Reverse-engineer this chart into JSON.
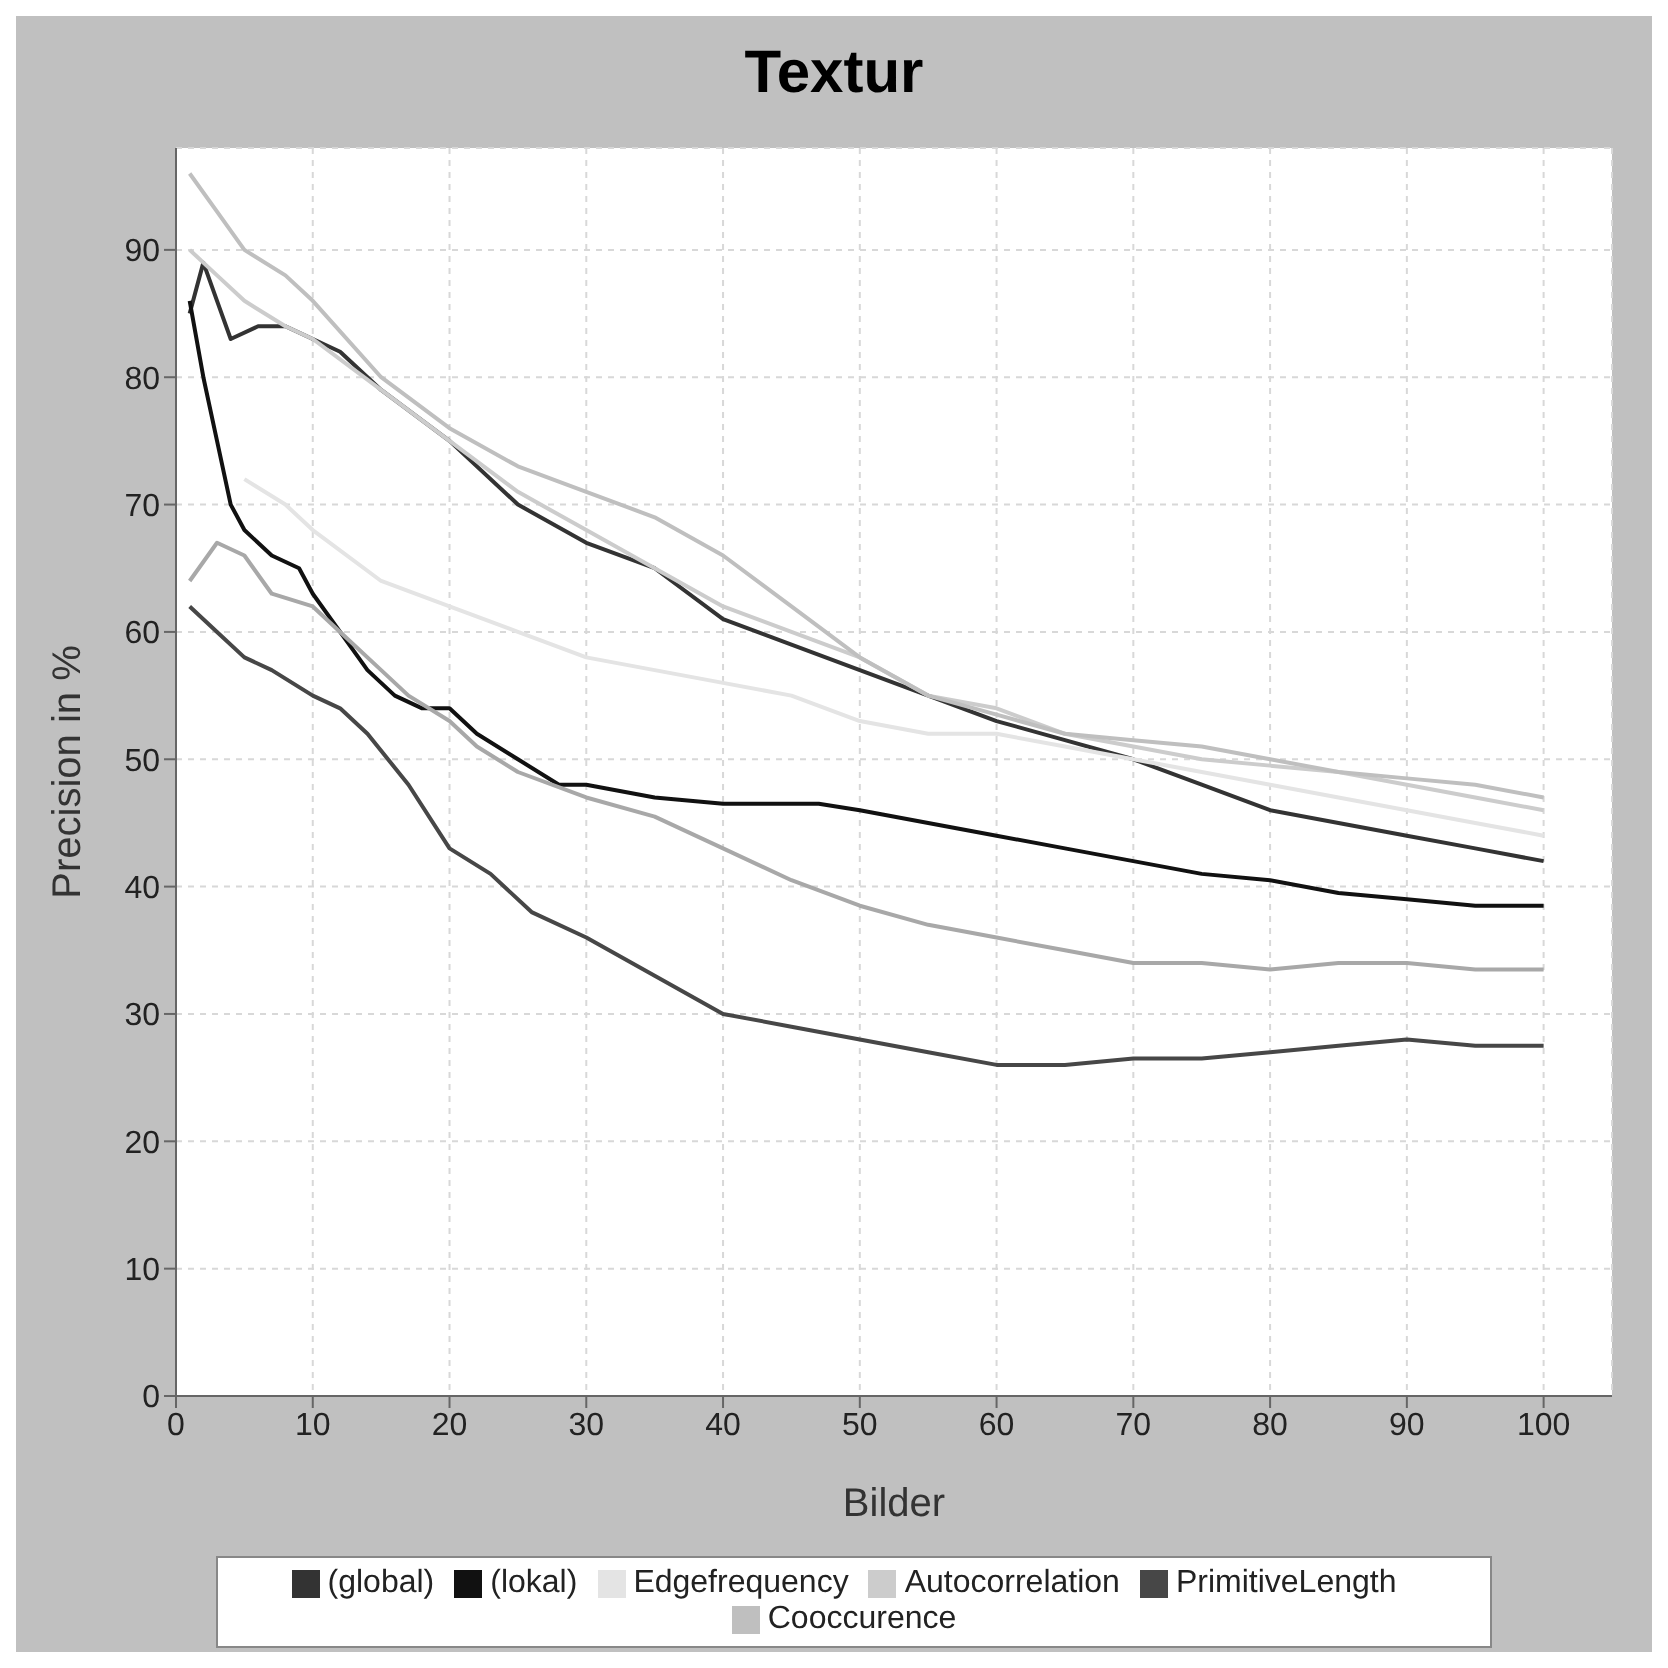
{
  "chart_data": {
    "type": "line",
    "title": "Textur",
    "xlabel": "Bilder",
    "ylabel": "Precision in %",
    "xlim": [
      0,
      105
    ],
    "ylim": [
      0,
      98
    ],
    "xticks": [
      0,
      10,
      20,
      30,
      40,
      50,
      60,
      70,
      80,
      90,
      100
    ],
    "yticks": [
      0,
      10,
      20,
      30,
      40,
      50,
      60,
      70,
      80,
      90
    ],
    "grid": true,
    "legend": "bottom",
    "marker": "none",
    "line_style": "solid",
    "series": [
      {
        "name": "(global)",
        "color": "#333333",
        "x": [
          1,
          2,
          3,
          4,
          6,
          8,
          10,
          12,
          15,
          20,
          25,
          30,
          35,
          40,
          45,
          50,
          55,
          60,
          65,
          70,
          75,
          80,
          85,
          90,
          95,
          100
        ],
        "values": [
          85,
          89,
          86,
          83,
          84,
          84,
          83,
          82,
          79,
          75,
          70,
          67,
          65,
          61,
          59,
          57,
          55,
          53,
          51.5,
          50,
          48,
          46,
          45,
          44,
          43,
          42
        ]
      },
      {
        "name": "(lokal)",
        "color": "#111111",
        "x": [
          1,
          2,
          3,
          4,
          5,
          7,
          9,
          10,
          12,
          14,
          16,
          18,
          20,
          22,
          25,
          28,
          30,
          35,
          40,
          47,
          50,
          55,
          60,
          65,
          70,
          75,
          80,
          85,
          90,
          95,
          100
        ],
        "values": [
          86,
          80,
          75,
          70,
          68,
          66,
          65,
          63,
          60,
          57,
          55,
          54,
          54,
          52,
          50,
          48,
          48,
          47,
          46.5,
          46.5,
          46,
          45,
          44,
          43,
          42,
          41,
          40.5,
          39.5,
          39,
          38.5,
          38.5
        ]
      },
      {
        "color": "#a8a8a8",
        "x": [
          1,
          3,
          5,
          7,
          10,
          12,
          15,
          17,
          20,
          22,
          25,
          30,
          35,
          40,
          45,
          50,
          55,
          60,
          65,
          70,
          75,
          80,
          85,
          90,
          95,
          100
        ],
        "values": [
          64,
          67,
          66,
          63,
          62,
          60,
          57,
          55,
          53,
          51,
          49,
          47,
          45.5,
          43,
          40.5,
          38.5,
          37,
          36,
          35,
          34,
          34,
          33.5,
          34,
          34,
          33.5,
          33.5
        ]
      },
      {
        "name": "Edgefrequency",
        "color": "#e4e4e4",
        "x": [
          5,
          8,
          10,
          15,
          20,
          25,
          30,
          35,
          40,
          45,
          50,
          55,
          60,
          65,
          70,
          75,
          80,
          85,
          90,
          95,
          100
        ],
        "values": [
          72,
          70,
          68,
          64,
          62,
          60,
          58,
          57,
          56,
          55,
          53,
          52,
          52,
          51,
          50,
          49,
          48,
          47,
          46,
          45,
          44
        ]
      },
      {
        "name": "Autocorrelation",
        "color": "#cccccc",
        "x": [
          1,
          3,
          5,
          8,
          10,
          15,
          20,
          25,
          30,
          35,
          40,
          45,
          50,
          55,
          60,
          65,
          70,
          75,
          80,
          85,
          90,
          95,
          100
        ],
        "values": [
          90,
          88,
          86,
          84,
          83,
          79,
          75,
          71,
          68,
          65,
          62,
          60,
          58,
          55,
          54,
          52,
          51,
          50,
          49.5,
          49,
          48,
          47,
          46
        ]
      },
      {
        "name": "PrimitiveLength",
        "color": "#474747",
        "x": [
          1,
          3,
          5,
          7,
          10,
          12,
          14,
          17,
          20,
          23,
          26,
          30,
          35,
          40,
          45,
          50,
          55,
          60,
          65,
          70,
          75,
          80,
          85,
          90,
          95,
          100
        ],
        "values": [
          62,
          60,
          58,
          57,
          55,
          54,
          52,
          48,
          43,
          41,
          38,
          36,
          33,
          30,
          29,
          28,
          27,
          26,
          26,
          26.5,
          26.5,
          27,
          27.5,
          28,
          27.5,
          27.5
        ]
      },
      {
        "name": "Cooccurence",
        "color": "#bfbfbf",
        "x": [
          1,
          3,
          5,
          8,
          10,
          15,
          20,
          25,
          30,
          35,
          40,
          45,
          50,
          55,
          60,
          65,
          70,
          75,
          80,
          85,
          90,
          95,
          100
        ],
        "values": [
          96,
          93,
          90,
          88,
          86,
          80,
          76,
          73,
          71,
          69,
          66,
          62,
          58,
          55,
          53.5,
          52,
          51.5,
          51,
          50,
          49,
          48.5,
          48,
          47
        ]
      }
    ]
  }
}
